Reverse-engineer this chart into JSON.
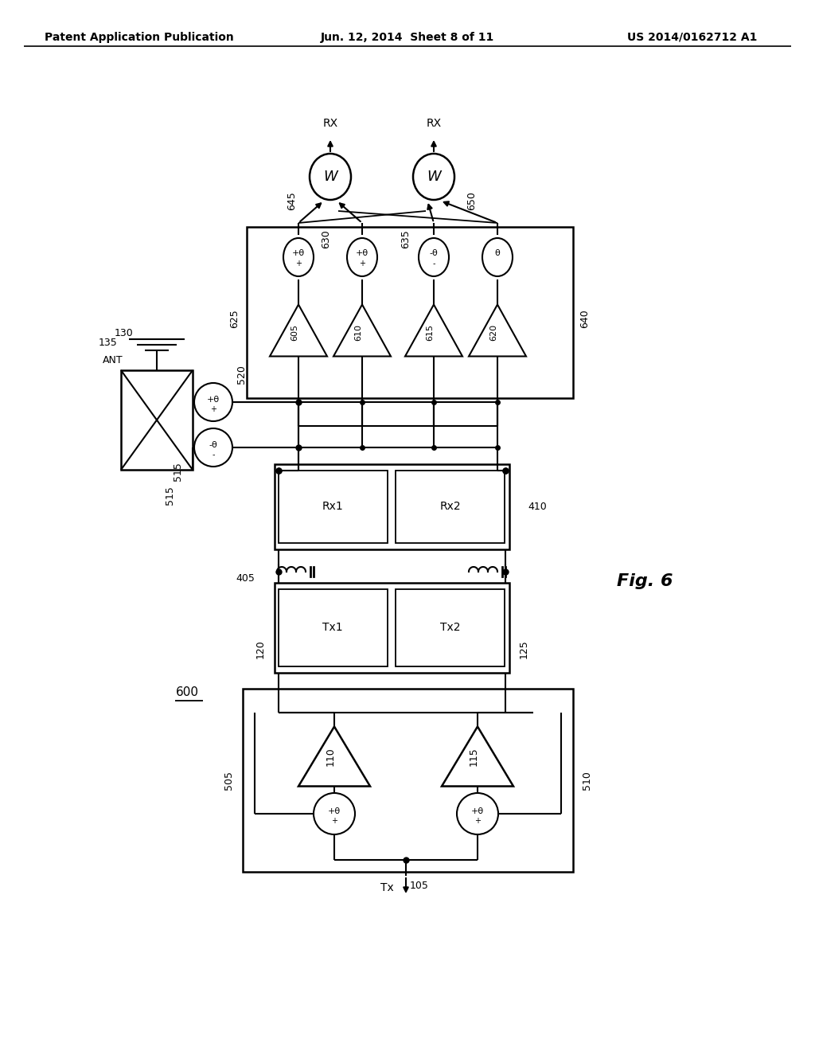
{
  "title_left": "Patent Application Publication",
  "title_center": "Jun. 12, 2014  Sheet 8 of 11",
  "title_right": "US 2014/0162712 A1",
  "fig_label": "Fig. 6",
  "fig_number": "600",
  "background_color": "#ffffff",
  "line_color": "#000000",
  "text_color": "#000000"
}
